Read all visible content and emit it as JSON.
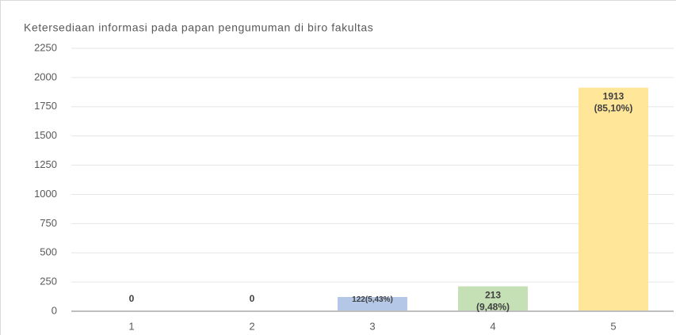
{
  "chart_data": {
    "type": "bar",
    "title": "Ketersediaan informasi pada papan pengumuman di biro fakultas",
    "categories": [
      "1",
      "2",
      "3",
      "4",
      "5"
    ],
    "values": [
      0,
      0,
      122,
      213,
      1913
    ],
    "value_labels": [
      "0",
      "0",
      "122(5,43%)",
      "213\n(9,48%)",
      "1913\n(85,10%)"
    ],
    "colors": [
      "#b4c7e7",
      "#b4c7e7",
      "#b4c7e7",
      "#c5e0b4",
      "#ffe699"
    ],
    "ylim": [
      0,
      2250
    ],
    "yticks": [
      0,
      250,
      500,
      750,
      1000,
      1250,
      1500,
      1750,
      2000,
      2250
    ],
    "grid": true
  }
}
